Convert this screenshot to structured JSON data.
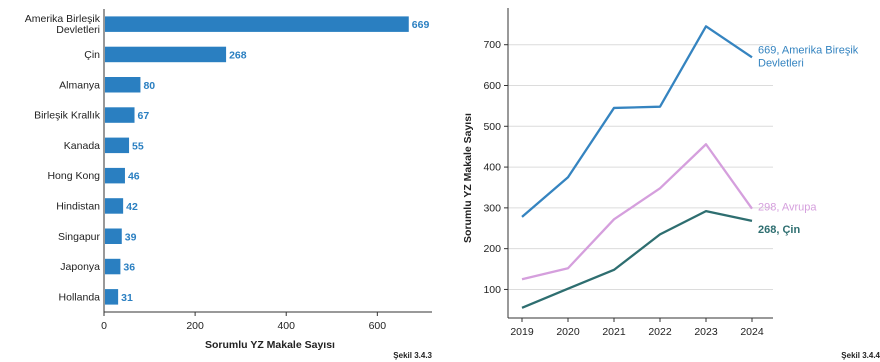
{
  "chart_data": [
    {
      "type": "bar",
      "orientation": "horizontal",
      "categories": [
        [
          "Amerika Birleşik",
          "Devletleri"
        ],
        [
          "Çin"
        ],
        [
          "Almanya"
        ],
        [
          "Birleşik Krallık"
        ],
        [
          "Kanada"
        ],
        [
          "Hong Kong"
        ],
        [
          "Hindistan"
        ],
        [
          "Singapur"
        ],
        [
          "Japonya"
        ],
        [
          "Hollanda"
        ]
      ],
      "values": [
        669,
        268,
        80,
        67,
        55,
        46,
        42,
        39,
        36,
        31
      ],
      "xlabel": "Sorumlu YZ Makale Sayısı",
      "ylabel": "",
      "xlim": [
        0,
        720
      ],
      "xticks": [
        0,
        200,
        400,
        600
      ],
      "grid": false,
      "bar_color": "#2a7fc1",
      "label_color": "#2a7fc1",
      "caption": "Şekil 3.4.3"
    },
    {
      "type": "line",
      "x": [
        2019,
        2020,
        2021,
        2022,
        2023,
        2024
      ],
      "series": [
        {
          "name": "Amerika Birleşik Devletleri",
          "values": [
            278,
            375,
            545,
            548,
            745,
            669
          ],
          "color": "#3584c0",
          "end_label": [
            "669, Amerika Bireşik",
            "Devletleri"
          ]
        },
        {
          "name": "Avrupa",
          "values": [
            125,
            152,
            272,
            348,
            456,
            298
          ],
          "color": "#d59fdd",
          "end_label": [
            "298, Avrupa"
          ]
        },
        {
          "name": "Çin",
          "values": [
            55,
            102,
            148,
            235,
            292,
            268
          ],
          "color": "#2e6e70",
          "end_label": [
            "268, Çin"
          ]
        }
      ],
      "xlabel": "",
      "ylabel": "Sorumlu YZ Makale Sayısı",
      "ylim": [
        30,
        790
      ],
      "yticks": [
        100,
        200,
        300,
        400,
        500,
        600,
        700
      ],
      "grid": true,
      "caption": "Şekil 3.4.4"
    }
  ]
}
